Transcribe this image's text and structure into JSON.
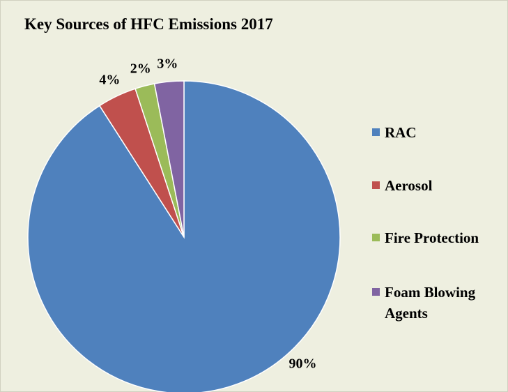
{
  "chart_data": {
    "type": "pie",
    "title": "Key Sources of HFC Emissions 2017",
    "categories": [
      "RAC",
      "Aerosol",
      "Fire Protection",
      "Foam Blowing Agents"
    ],
    "values": [
      90,
      4,
      2,
      3
    ],
    "value_labels": [
      "90%",
      "4%",
      "2%",
      "3%"
    ],
    "colors": [
      "#4f81bd",
      "#c0504d",
      "#9bbb59",
      "#8064a2"
    ],
    "legend": "right"
  }
}
